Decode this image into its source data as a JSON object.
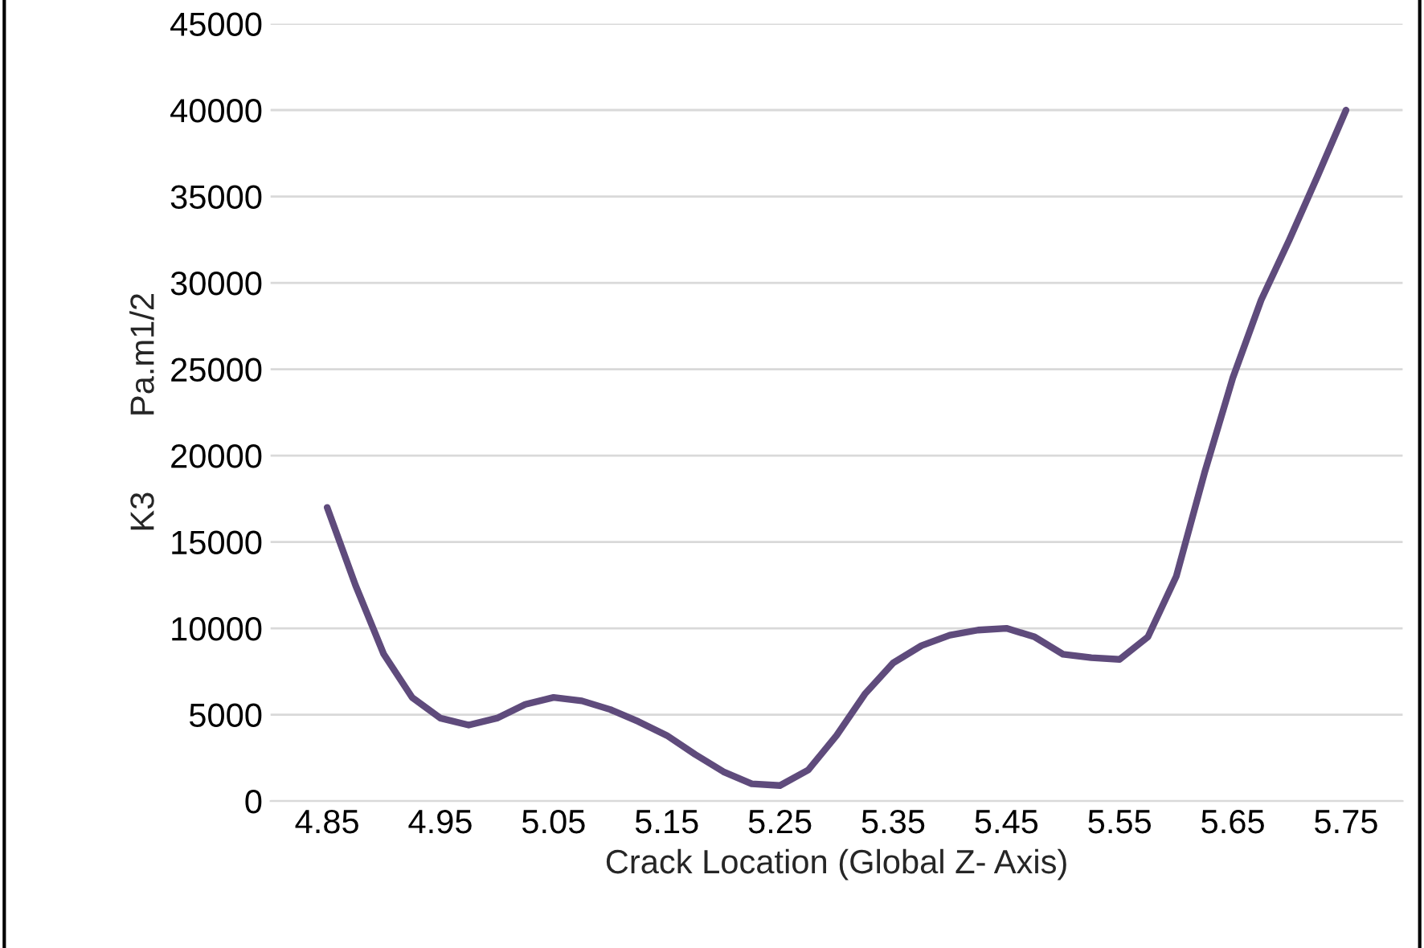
{
  "chart_data": {
    "type": "line",
    "xlabel": "Crack Location (Global Z- Axis)",
    "ylabel": "K3        Pa.m1/2",
    "x": [
      4.85,
      4.875,
      4.9,
      4.925,
      4.95,
      4.975,
      5.0,
      5.025,
      5.05,
      5.075,
      5.1,
      5.125,
      5.15,
      5.175,
      5.2,
      5.225,
      5.25,
      5.275,
      5.3,
      5.325,
      5.35,
      5.375,
      5.4,
      5.425,
      5.45,
      5.475,
      5.5,
      5.525,
      5.55,
      5.575,
      5.6,
      5.625,
      5.65,
      5.675,
      5.7,
      5.725,
      5.75
    ],
    "series": [
      {
        "color": "#5f4b7c",
        "values": [
          17000,
          12500,
          8500,
          6000,
          4800,
          4400,
          4800,
          5600,
          6000,
          5800,
          5300,
          4600,
          3800,
          2700,
          1700,
          1000,
          900,
          1800,
          3800,
          6200,
          8000,
          9000,
          9600,
          9900,
          10000,
          9500,
          8500,
          8300,
          8200,
          9500,
          13000,
          19000,
          24500,
          29000,
          32500,
          36200,
          40000
        ]
      }
    ],
    "xlim": [
      4.8,
      5.8
    ],
    "xticks": [
      4.85,
      4.95,
      5.05,
      5.15,
      5.25,
      5.35,
      5.45,
      5.55,
      5.65,
      5.75
    ],
    "ylim": [
      0,
      45000
    ],
    "yticks": [
      0,
      5000,
      10000,
      15000,
      20000,
      25000,
      30000,
      35000,
      40000,
      45000
    ],
    "grid": "y",
    "marker": "none",
    "line_style": "solid"
  }
}
